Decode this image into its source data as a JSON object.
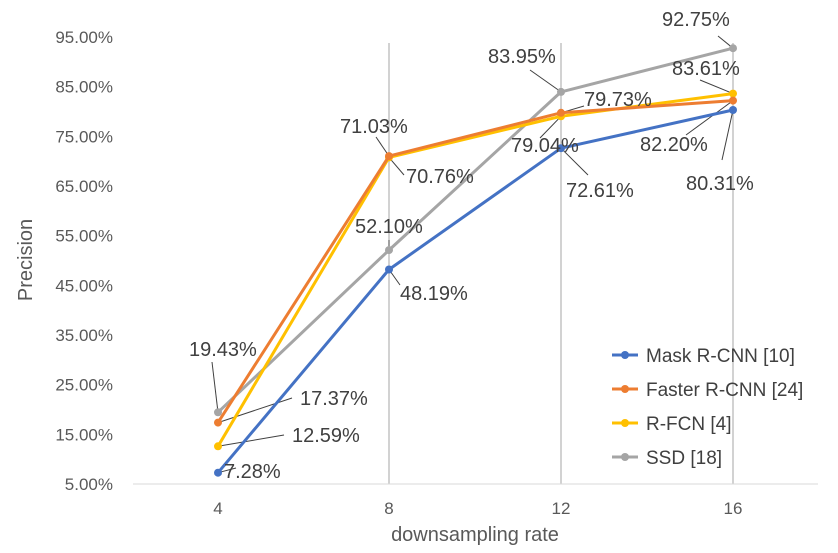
{
  "chart_data": {
    "type": "line",
    "title": "",
    "xlabel": "downsampling rate",
    "ylabel": "Precision",
    "categories": [
      "4",
      "8",
      "12",
      "16"
    ],
    "yticks": [
      "5.00%",
      "15.00%",
      "25.00%",
      "35.00%",
      "45.00%",
      "55.00%",
      "65.00%",
      "75.00%",
      "85.00%",
      "95.00%"
    ],
    "ylim": [
      5,
      95
    ],
    "grid": "vertical",
    "legend_position": "bottom-right",
    "series": [
      {
        "name": "Mask R-CNN [10]",
        "color": "#4472C4",
        "values": [
          7.28,
          48.19,
          72.61,
          80.31
        ],
        "labels": [
          "7.28%",
          "48.19%",
          "72.61%",
          "80.31%"
        ]
      },
      {
        "name": "Faster R-CNN [24]",
        "color": "#ED7D31",
        "values": [
          17.37,
          71.03,
          79.73,
          82.2
        ],
        "labels": [
          "17.37%",
          "71.03%",
          "79.73%",
          "82.20%"
        ]
      },
      {
        "name": "R-FCN [4]",
        "color": "#FFC000",
        "values": [
          12.59,
          70.76,
          79.04,
          83.61
        ],
        "labels": [
          "12.59%",
          "70.76%",
          "79.04%",
          "83.61%"
        ]
      },
      {
        "name": "SSD [18]",
        "color": "#A5A5A5",
        "values": [
          19.43,
          52.1,
          83.95,
          92.75
        ],
        "labels": [
          "19.43%",
          "52.10%",
          "83.95%",
          "92.75%"
        ]
      }
    ]
  }
}
